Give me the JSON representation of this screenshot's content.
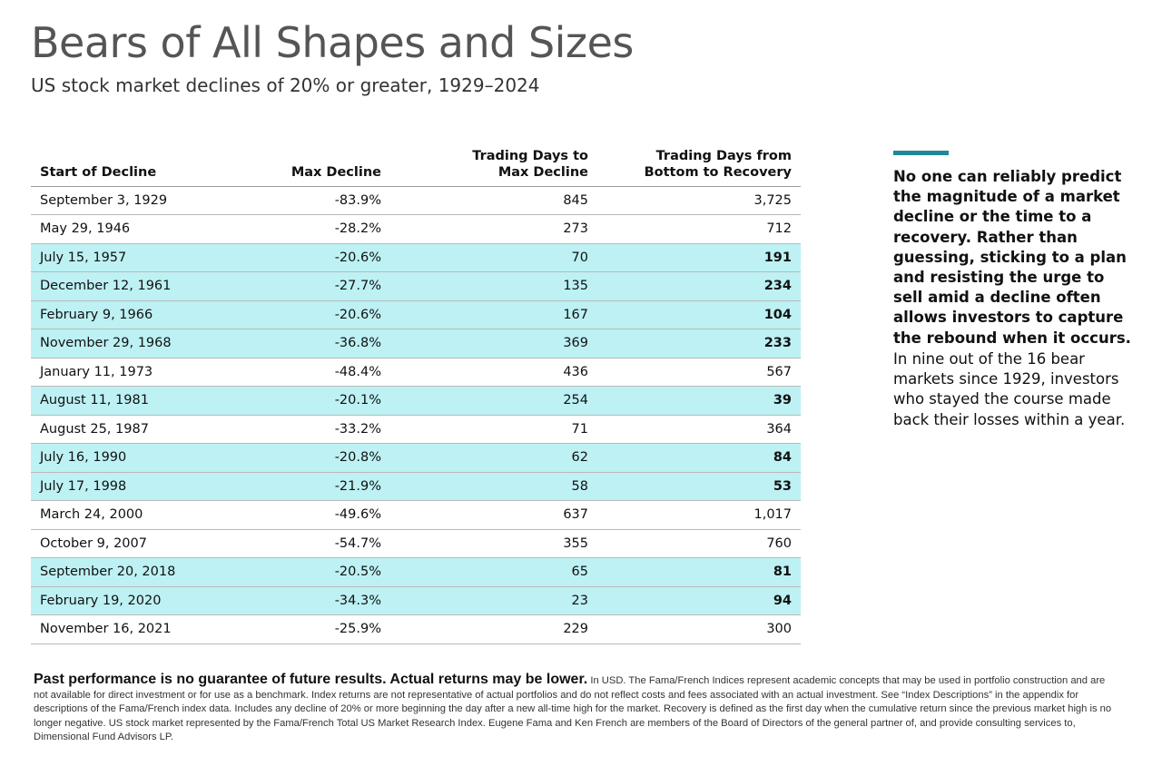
{
  "header": {
    "title": "Bears of All Shapes and Sizes",
    "subtitle": "US stock market declines of 20% or greater, 1929–2024"
  },
  "table": {
    "headers": {
      "start": "Start of Decline",
      "max_decline": "Max Decline",
      "days_to_max_l1": "Trading Days to",
      "days_to_max_l2": "Max Decline",
      "days_recovery_l1": "Trading Days from",
      "days_recovery_l2": "Bottom to Recovery"
    },
    "rows": [
      {
        "start": "September 3, 1929",
        "max_decline": "-83.9%",
        "days_to_max": "845",
        "days_recovery": "3,725",
        "highlight": false
      },
      {
        "start": "May 29, 1946",
        "max_decline": "-28.2%",
        "days_to_max": "273",
        "days_recovery": "712",
        "highlight": false
      },
      {
        "start": "July 15, 1957",
        "max_decline": "-20.6%",
        "days_to_max": "70",
        "days_recovery": "191",
        "highlight": true
      },
      {
        "start": "December 12, 1961",
        "max_decline": "-27.7%",
        "days_to_max": "135",
        "days_recovery": "234",
        "highlight": true
      },
      {
        "start": "February 9, 1966",
        "max_decline": "-20.6%",
        "days_to_max": "167",
        "days_recovery": "104",
        "highlight": true
      },
      {
        "start": "November 29, 1968",
        "max_decline": "-36.8%",
        "days_to_max": "369",
        "days_recovery": "233",
        "highlight": true
      },
      {
        "start": "January 11, 1973",
        "max_decline": "-48.4%",
        "days_to_max": "436",
        "days_recovery": "567",
        "highlight": false
      },
      {
        "start": "August 11, 1981",
        "max_decline": "-20.1%",
        "days_to_max": "254",
        "days_recovery": "39",
        "highlight": true
      },
      {
        "start": "August 25, 1987",
        "max_decline": "-33.2%",
        "days_to_max": "71",
        "days_recovery": "364",
        "highlight": false
      },
      {
        "start": "July 16, 1990",
        "max_decline": "-20.8%",
        "days_to_max": "62",
        "days_recovery": "84",
        "highlight": true
      },
      {
        "start": "July 17, 1998",
        "max_decline": "-21.9%",
        "days_to_max": "58",
        "days_recovery": "53",
        "highlight": true
      },
      {
        "start": "March 24, 2000",
        "max_decline": "-49.6%",
        "days_to_max": "637",
        "days_recovery": "1,017",
        "highlight": false
      },
      {
        "start": "October 9, 2007",
        "max_decline": "-54.7%",
        "days_to_max": "355",
        "days_recovery": "760",
        "highlight": false
      },
      {
        "start": "September 20, 2018",
        "max_decline": "-20.5%",
        "days_to_max": "65",
        "days_recovery": "81",
        "highlight": true
      },
      {
        "start": "February 19, 2020",
        "max_decline": "-34.3%",
        "days_to_max": "23",
        "days_recovery": "94",
        "highlight": true
      },
      {
        "start": "November 16, 2021",
        "max_decline": "-25.9%",
        "days_to_max": "229",
        "days_recovery": "300",
        "highlight": false
      }
    ]
  },
  "sidebar": {
    "bold_text": "No one can reliably predict the magnitude of a market decline or the time to a recovery. Rather than guessing, sticking to a plan and resisting the urge to sell amid a decline often allows investors to capture the rebound when it occurs.",
    "normal_text": "In nine out of the 16 bear markets since 1929, investors who stayed the course made back their losses within a year."
  },
  "footnote": {
    "lead": "Past performance is no guarantee of future results. Actual returns may be lower.",
    "body": "In USD. The Fama/French Indices represent academic concepts that may be used in portfolio construction and are not available for direct investment or for use as a benchmark. Index returns are not representative of actual portfolios and do not reflect costs and fees associated with an actual investment. See “Index Descriptions” in the appendix for descriptions of the Fama/French index data. Includes any decline of 20% or more beginning the day after a new all-time high for the market. Recovery is defined as the first day when the cumulative return since the previous market high is no longer negative. US stock market represented by the Fama/French Total US Market Research Index. Eugene Fama and Ken French are members of the Board of Directors of the general partner of, and provide consulting services to, Dimensional Fund Advisors LP."
  },
  "colors": {
    "highlight_row": "#bdf1f4",
    "accent_bar": "#1f8a96",
    "title": "#555555"
  }
}
